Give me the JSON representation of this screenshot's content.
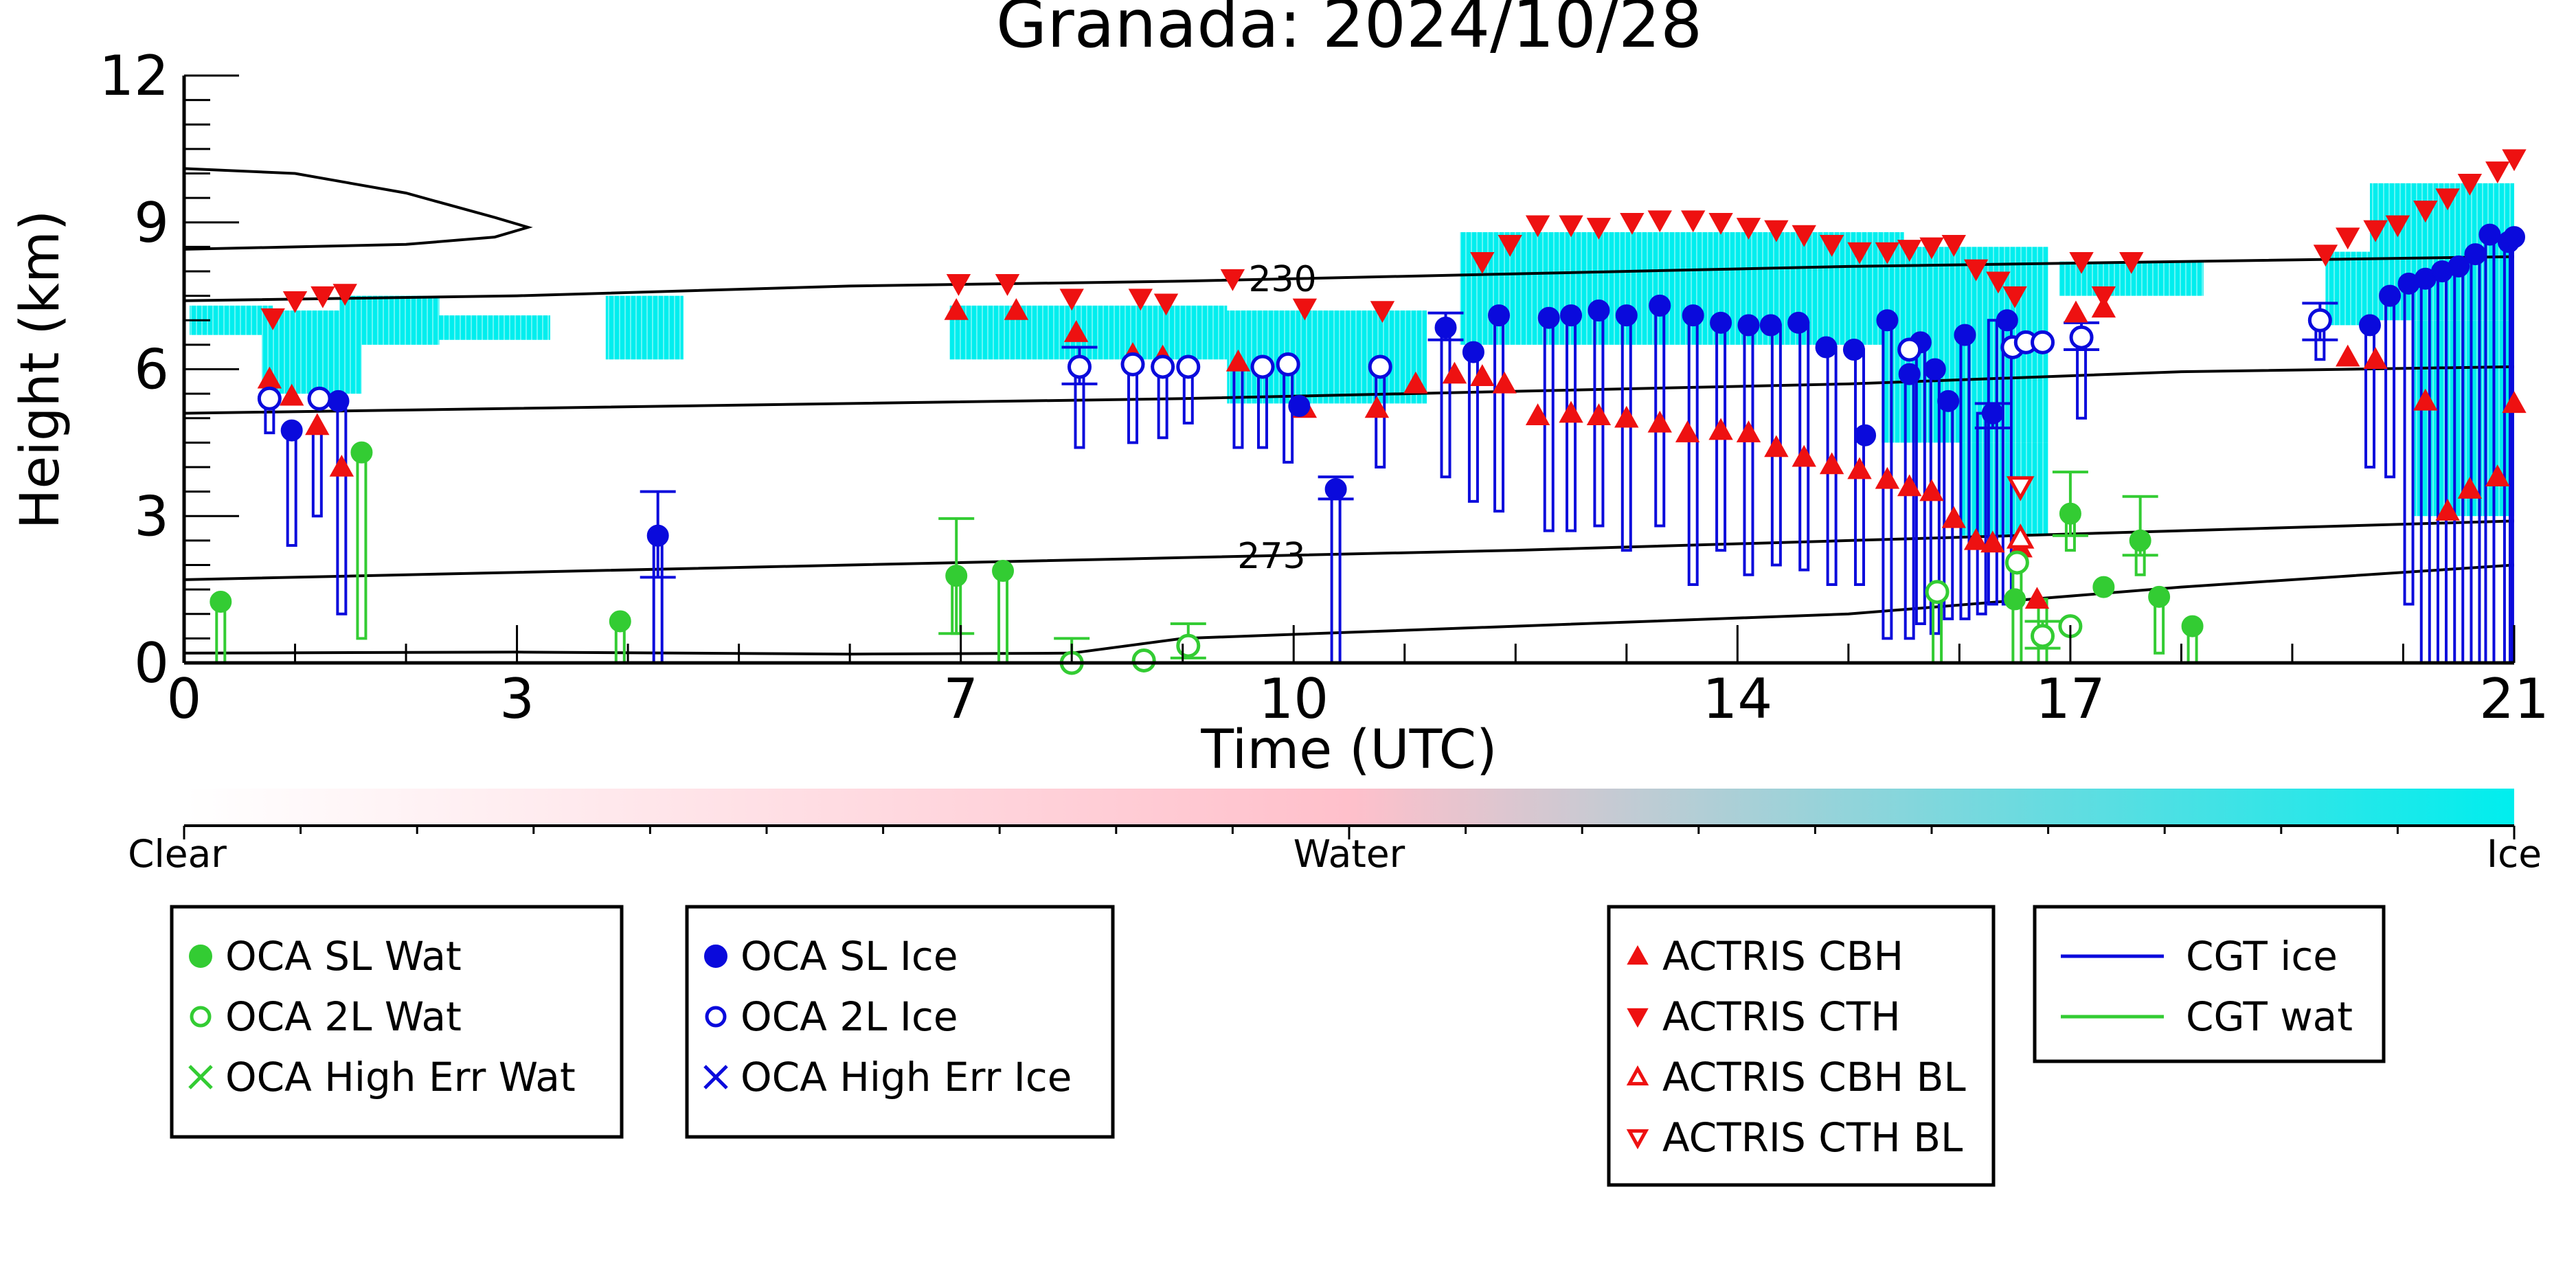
{
  "chart_data": {
    "type": "scatter",
    "title": "Granada: 2024/10/28",
    "xlabel": "Time (UTC)",
    "ylabel": "Height (km)",
    "xlim": [
      0,
      21
    ],
    "ylim": [
      0,
      12
    ],
    "xticks": [
      0,
      3,
      7,
      10,
      14,
      17,
      21
    ],
    "yticks": [
      0,
      3,
      6,
      9,
      12
    ],
    "colors": {
      "water": "#33cc33",
      "ice": "#0a0adc",
      "actris": "#ee1111",
      "cloud_ice": "#00eeee",
      "cloud_water": "#ffc0cb"
    },
    "colorbar": {
      "labels": [
        "Clear",
        "Water",
        "Ice"
      ],
      "stops": [
        "#ffffff",
        "#ffc0cb",
        "#00eeee"
      ]
    },
    "contours": [
      {
        "label": "230",
        "label_x": 9.9,
        "points": [
          [
            0,
            7.4
          ],
          [
            3,
            7.5
          ],
          [
            6,
            7.7
          ],
          [
            9,
            7.8
          ],
          [
            12,
            7.95
          ],
          [
            15,
            8.1
          ],
          [
            18,
            8.2
          ],
          [
            21,
            8.3
          ]
        ]
      },
      {
        "label": "",
        "label_x": null,
        "points": [
          [
            0,
            5.1
          ],
          [
            3,
            5.2
          ],
          [
            6,
            5.3
          ],
          [
            9,
            5.4
          ],
          [
            12,
            5.55
          ],
          [
            15,
            5.7
          ],
          [
            18,
            5.95
          ],
          [
            21,
            6.05
          ]
        ]
      },
      {
        "label": "273",
        "label_x": 9.8,
        "points": [
          [
            0,
            1.7
          ],
          [
            3,
            1.85
          ],
          [
            6,
            2.0
          ],
          [
            9,
            2.15
          ],
          [
            12,
            2.3
          ],
          [
            15,
            2.5
          ],
          [
            18,
            2.7
          ],
          [
            21,
            2.9
          ]
        ]
      },
      {
        "label": "",
        "label_x": null,
        "points": [
          [
            0,
            0.2
          ],
          [
            3,
            0.22
          ],
          [
            6,
            0.18
          ],
          [
            8,
            0.2
          ],
          [
            9,
            0.5
          ],
          [
            12,
            0.75
          ],
          [
            15,
            1.0
          ],
          [
            18,
            1.55
          ],
          [
            21,
            2.0
          ]
        ]
      }
    ],
    "profile": [
      [
        0,
        10.1
      ],
      [
        1,
        10.0
      ],
      [
        2,
        9.6
      ],
      [
        2.8,
        9.1
      ],
      [
        3.1,
        8.9
      ],
      [
        2.8,
        8.7
      ],
      [
        2,
        8.55
      ],
      [
        1,
        8.5
      ],
      [
        0,
        8.45
      ]
    ],
    "cloud_regions": [
      {
        "x0": 0.05,
        "x1": 0.8,
        "y0": 6.7,
        "y1": 7.3
      },
      {
        "x0": 0.7,
        "x1": 1.6,
        "y0": 5.5,
        "y1": 7.2
      },
      {
        "x0": 1.4,
        "x1": 2.3,
        "y0": 6.5,
        "y1": 7.5
      },
      {
        "x0": 2.3,
        "x1": 3.3,
        "y0": 6.6,
        "y1": 7.1
      },
      {
        "x0": 3.8,
        "x1": 4.5,
        "y0": 6.2,
        "y1": 7.5
      },
      {
        "x0": 6.9,
        "x1": 9.4,
        "y0": 6.2,
        "y1": 7.3
      },
      {
        "x0": 9.4,
        "x1": 11.2,
        "y0": 5.3,
        "y1": 7.2
      },
      {
        "x0": 11.5,
        "x1": 15.5,
        "y0": 6.5,
        "y1": 8.8
      },
      {
        "x0": 15.3,
        "x1": 16.8,
        "y0": 4.5,
        "y1": 8.5
      },
      {
        "x0": 16.0,
        "x1": 16.8,
        "y0": 2.6,
        "y1": 4.5
      },
      {
        "x0": 16.9,
        "x1": 18.2,
        "y0": 7.5,
        "y1": 8.2
      },
      {
        "x0": 19.3,
        "x1": 19.7,
        "y0": 6.9,
        "y1": 8.4
      },
      {
        "x0": 19.7,
        "x1": 21.0,
        "y0": 7.0,
        "y1": 9.8
      },
      {
        "x0": 20.1,
        "x1": 21.0,
        "y0": 3.0,
        "y1": 7.0
      }
    ],
    "oca_sl_wat": [
      [
        0.33,
        1.25
      ],
      [
        3.93,
        0.85
      ],
      [
        6.96,
        1.78
      ],
      [
        7.38,
        1.88
      ],
      [
        17.0,
        3.05
      ],
      [
        17.63,
        2.5
      ],
      [
        17.8,
        1.35
      ],
      [
        18.1,
        0.75
      ],
      [
        16.5,
        1.3
      ],
      [
        17.3,
        1.55
      ],
      [
        1.6,
        4.3
      ]
    ],
    "oca_2l_wat": [
      [
        8.0,
        0.0
      ],
      [
        8.65,
        0.05
      ],
      [
        9.05,
        0.35
      ],
      [
        15.8,
        1.45
      ],
      [
        16.52,
        2.05
      ],
      [
        16.75,
        0.55
      ],
      [
        17.0,
        0.75
      ]
    ],
    "oca_sl_ice": [
      [
        0.97,
        4.75
      ],
      [
        1.39,
        5.35
      ],
      [
        4.27,
        2.6
      ],
      [
        10.38,
        3.55
      ],
      [
        11.37,
        6.85
      ],
      [
        11.62,
        6.35
      ],
      [
        11.85,
        7.1
      ],
      [
        12.3,
        7.05
      ],
      [
        12.5,
        7.1
      ],
      [
        12.75,
        7.2
      ],
      [
        13.0,
        7.1
      ],
      [
        13.3,
        7.3
      ],
      [
        13.6,
        7.1
      ],
      [
        13.85,
        6.95
      ],
      [
        14.1,
        6.9
      ],
      [
        14.3,
        6.9
      ],
      [
        14.55,
        6.95
      ],
      [
        14.8,
        6.45
      ],
      [
        15.05,
        6.4
      ],
      [
        15.35,
        7.0
      ],
      [
        15.55,
        5.9
      ],
      [
        15.65,
        6.55
      ],
      [
        15.78,
        6.0
      ],
      [
        15.9,
        5.35
      ],
      [
        16.05,
        6.7
      ],
      [
        16.3,
        5.1
      ],
      [
        16.43,
        7.0
      ],
      [
        19.7,
        6.9
      ],
      [
        19.88,
        7.5
      ],
      [
        20.05,
        7.75
      ],
      [
        20.2,
        7.85
      ],
      [
        20.35,
        8.0
      ],
      [
        20.5,
        8.1
      ],
      [
        20.65,
        8.35
      ],
      [
        20.78,
        8.75
      ],
      [
        20.95,
        8.6
      ],
      [
        21.0,
        8.7
      ],
      [
        15.15,
        4.65
      ],
      [
        10.05,
        5.25
      ]
    ],
    "oca_2l_ice": [
      [
        0.77,
        5.4
      ],
      [
        1.22,
        5.4
      ],
      [
        8.07,
        6.05
      ],
      [
        8.55,
        6.1
      ],
      [
        8.82,
        6.05
      ],
      [
        9.05,
        6.05
      ],
      [
        9.72,
        6.05
      ],
      [
        9.95,
        6.1
      ],
      [
        10.78,
        6.05
      ],
      [
        15.55,
        6.4
      ],
      [
        16.48,
        6.45
      ],
      [
        16.6,
        6.55
      ],
      [
        16.75,
        6.55
      ],
      [
        17.1,
        6.65
      ],
      [
        19.25,
        7.0
      ]
    ],
    "actris_cbh": [
      [
        0.77,
        5.8
      ],
      [
        0.97,
        5.45
      ],
      [
        1.2,
        4.85
      ],
      [
        1.42,
        4.0
      ],
      [
        6.96,
        7.2
      ],
      [
        7.5,
        7.2
      ],
      [
        8.04,
        6.75
      ],
      [
        8.55,
        6.3
      ],
      [
        8.82,
        6.25
      ],
      [
        9.5,
        6.15
      ],
      [
        10.1,
        5.2
      ],
      [
        10.75,
        5.2
      ],
      [
        11.1,
        5.7
      ],
      [
        11.45,
        5.9
      ],
      [
        11.7,
        5.85
      ],
      [
        11.9,
        5.7
      ],
      [
        12.2,
        5.05
      ],
      [
        12.5,
        5.1
      ],
      [
        12.75,
        5.05
      ],
      [
        13.0,
        5.0
      ],
      [
        13.3,
        4.9
      ],
      [
        13.55,
        4.7
      ],
      [
        13.85,
        4.75
      ],
      [
        14.1,
        4.7
      ],
      [
        14.35,
        4.4
      ],
      [
        14.6,
        4.2
      ],
      [
        14.85,
        4.05
      ],
      [
        15.1,
        3.95
      ],
      [
        15.35,
        3.75
      ],
      [
        15.55,
        3.6
      ],
      [
        15.75,
        3.5
      ],
      [
        15.95,
        2.95
      ],
      [
        16.15,
        2.5
      ],
      [
        16.3,
        2.45
      ],
      [
        16.55,
        2.35
      ],
      [
        16.7,
        1.3
      ],
      [
        17.05,
        7.15
      ],
      [
        17.3,
        7.25
      ],
      [
        19.5,
        6.25
      ],
      [
        19.75,
        6.2
      ],
      [
        20.2,
        5.35
      ],
      [
        20.4,
        3.1
      ],
      [
        20.6,
        3.55
      ],
      [
        20.85,
        3.8
      ],
      [
        21.0,
        5.3
      ]
    ],
    "actris_cth": [
      [
        0.8,
        7.05
      ],
      [
        1.0,
        7.4
      ],
      [
        1.25,
        7.5
      ],
      [
        1.45,
        7.55
      ],
      [
        6.98,
        7.75
      ],
      [
        7.42,
        7.75
      ],
      [
        8.0,
        7.45
      ],
      [
        8.62,
        7.45
      ],
      [
        8.85,
        7.35
      ],
      [
        9.45,
        7.85
      ],
      [
        10.1,
        7.25
      ],
      [
        10.8,
        7.2
      ],
      [
        11.7,
        8.2
      ],
      [
        11.95,
        8.55
      ],
      [
        12.2,
        8.95
      ],
      [
        12.5,
        8.95
      ],
      [
        12.75,
        8.9
      ],
      [
        13.05,
        9.0
      ],
      [
        13.3,
        9.05
      ],
      [
        13.6,
        9.05
      ],
      [
        13.85,
        9.0
      ],
      [
        14.1,
        8.9
      ],
      [
        14.35,
        8.85
      ],
      [
        14.6,
        8.75
      ],
      [
        14.85,
        8.55
      ],
      [
        15.1,
        8.4
      ],
      [
        15.35,
        8.4
      ],
      [
        15.55,
        8.45
      ],
      [
        15.75,
        8.5
      ],
      [
        15.95,
        8.55
      ],
      [
        16.15,
        8.05
      ],
      [
        16.35,
        7.8
      ],
      [
        16.5,
        7.5
      ],
      [
        17.1,
        8.2
      ],
      [
        17.3,
        7.5
      ],
      [
        17.55,
        8.2
      ],
      [
        19.3,
        8.35
      ],
      [
        19.5,
        8.7
      ],
      [
        19.75,
        8.85
      ],
      [
        19.95,
        8.95
      ],
      [
        20.2,
        9.25
      ],
      [
        20.4,
        9.5
      ],
      [
        20.6,
        9.8
      ],
      [
        20.85,
        10.05
      ],
      [
        21.0,
        10.3
      ]
    ],
    "actris_cbh_bl": [
      [
        16.55,
        2.55
      ]
    ],
    "actris_cth_bl": [
      [
        16.55,
        3.6
      ]
    ],
    "cgt_ice": [
      [
        0.77,
        4.7,
        5.5
      ],
      [
        0.97,
        2.4,
        4.75
      ],
      [
        1.2,
        3.0,
        4.8
      ],
      [
        1.42,
        1.0,
        5.35
      ],
      [
        4.27,
        0.0,
        2.6
      ],
      [
        8.07,
        4.4,
        6.05
      ],
      [
        8.55,
        4.5,
        6.1
      ],
      [
        8.82,
        4.6,
        6.05
      ],
      [
        9.05,
        4.9,
        6.05
      ],
      [
        9.5,
        4.4,
        6.15
      ],
      [
        9.72,
        4.4,
        6.05
      ],
      [
        9.95,
        4.1,
        6.05
      ],
      [
        10.38,
        0.0,
        3.55
      ],
      [
        10.78,
        4.0,
        6.05
      ],
      [
        11.37,
        3.8,
        6.85
      ],
      [
        11.62,
        3.3,
        6.35
      ],
      [
        11.85,
        3.1,
        7.1
      ],
      [
        12.3,
        2.7,
        7.05
      ],
      [
        12.5,
        2.7,
        7.1
      ],
      [
        12.75,
        2.8,
        7.2
      ],
      [
        13.0,
        2.3,
        7.1
      ],
      [
        13.3,
        2.8,
        7.3
      ],
      [
        13.6,
        1.6,
        7.1
      ],
      [
        13.85,
        2.3,
        6.95
      ],
      [
        14.1,
        1.8,
        6.9
      ],
      [
        14.35,
        2.0,
        6.9
      ],
      [
        14.6,
        1.9,
        6.95
      ],
      [
        14.85,
        1.6,
        6.45
      ],
      [
        15.1,
        1.6,
        6.4
      ],
      [
        15.35,
        0.5,
        7.0
      ],
      [
        15.55,
        0.5,
        6.0
      ],
      [
        15.65,
        0.8,
        6.5
      ],
      [
        15.78,
        0.6,
        6.0
      ],
      [
        15.9,
        0.9,
        5.35
      ],
      [
        16.05,
        0.9,
        6.7
      ],
      [
        16.2,
        1.0,
        5.1
      ],
      [
        16.3,
        1.2,
        7.0
      ],
      [
        16.43,
        1.2,
        7.0
      ],
      [
        17.1,
        5.0,
        6.65
      ],
      [
        19.25,
        6.2,
        7.0
      ],
      [
        19.7,
        4.0,
        6.9
      ],
      [
        19.88,
        3.8,
        7.5
      ],
      [
        20.05,
        1.2,
        7.75
      ],
      [
        20.2,
        0.0,
        7.85
      ],
      [
        20.35,
        0.0,
        8.0
      ],
      [
        20.5,
        0.0,
        8.1
      ],
      [
        20.65,
        0.0,
        8.35
      ],
      [
        20.78,
        0.0,
        8.75
      ],
      [
        20.95,
        0.0,
        8.6
      ],
      [
        21.0,
        0.0,
        8.7
      ]
    ],
    "cgt_wat": [
      [
        0.33,
        0.0,
        1.25
      ],
      [
        1.6,
        0.5,
        4.3
      ],
      [
        3.93,
        0.0,
        0.85
      ],
      [
        6.96,
        0.6,
        1.78
      ],
      [
        7.38,
        0.0,
        1.88
      ],
      [
        15.8,
        0.0,
        1.45
      ],
      [
        16.52,
        0.0,
        2.05
      ],
      [
        16.75,
        0.0,
        1.3
      ],
      [
        17.0,
        2.3,
        3.05
      ],
      [
        17.63,
        1.8,
        2.5
      ],
      [
        17.8,
        0.2,
        1.35
      ],
      [
        18.1,
        0.0,
        0.75
      ]
    ],
    "error_bars_ice": [
      [
        4.27,
        1.75,
        3.5
      ],
      [
        8.07,
        5.7,
        6.45
      ],
      [
        10.38,
        3.35,
        3.8
      ],
      [
        11.37,
        6.6,
        7.15
      ],
      [
        16.3,
        4.8,
        5.3
      ],
      [
        19.25,
        6.6,
        7.35
      ],
      [
        17.1,
        6.4,
        6.95
      ]
    ],
    "error_bars_wat": [
      [
        6.96,
        0.6,
        2.95
      ],
      [
        8.0,
        0.0,
        0.5
      ],
      [
        9.05,
        0.1,
        0.8
      ],
      [
        17.0,
        2.6,
        3.9
      ],
      [
        17.63,
        2.2,
        3.4
      ],
      [
        16.75,
        0.3,
        0.85
      ]
    ],
    "legends": [
      {
        "items": [
          {
            "label": "OCA SL Wat",
            "marker": "filled-circle",
            "color": "#33cc33"
          },
          {
            "label": "OCA 2L Wat",
            "marker": "open-circle",
            "color": "#33cc33"
          },
          {
            "label": "OCA High Err Wat",
            "marker": "x",
            "color": "#33cc33"
          }
        ]
      },
      {
        "items": [
          {
            "label": "OCA SL Ice",
            "marker": "filled-circle",
            "color": "#0a0adc"
          },
          {
            "label": "OCA 2L Ice",
            "marker": "open-circle",
            "color": "#0a0adc"
          },
          {
            "label": "OCA High Err Ice",
            "marker": "x",
            "color": "#0a0adc"
          }
        ]
      },
      {
        "items": [
          {
            "label": "ACTRIS CBH",
            "marker": "filled-triangle-up",
            "color": "#ee1111"
          },
          {
            "label": "ACTRIS CTH",
            "marker": "filled-triangle-down",
            "color": "#ee1111"
          },
          {
            "label": "ACTRIS CBH BL",
            "marker": "open-triangle-up",
            "color": "#ee1111"
          },
          {
            "label": "ACTRIS CTH BL",
            "marker": "open-triangle-down",
            "color": "#ee1111"
          }
        ]
      },
      {
        "items": [
          {
            "label": "CGT ice",
            "marker": "line",
            "color": "#0a0adc"
          },
          {
            "label": "CGT wat",
            "marker": "line",
            "color": "#33cc33"
          }
        ]
      }
    ]
  }
}
